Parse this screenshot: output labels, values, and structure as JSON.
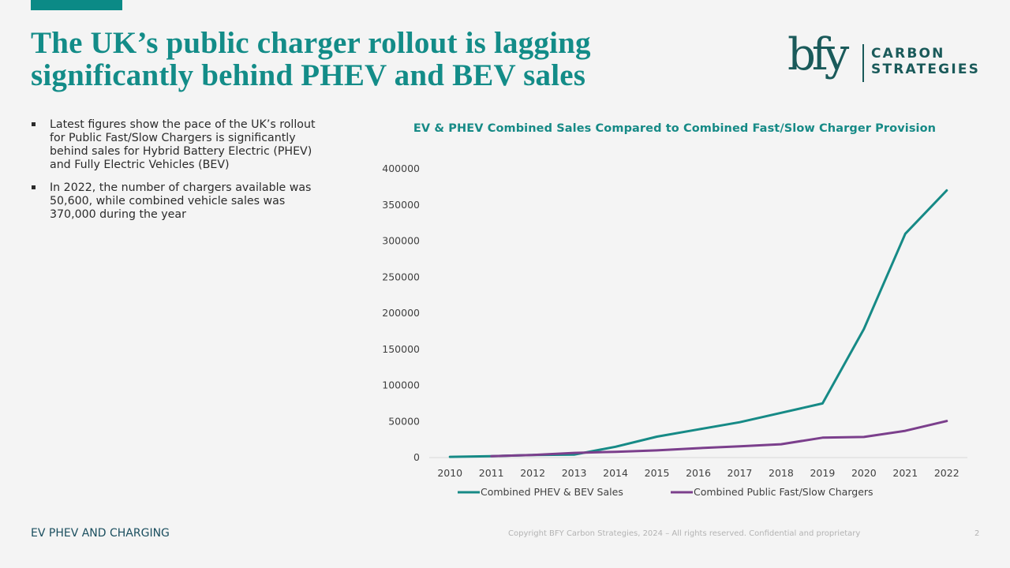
{
  "slide": {
    "title": "The UK’s public charger rollout is lagging significantly behind PHEV and BEV sales",
    "logo": {
      "mark": "bfy",
      "line1": "CARBON",
      "line2": "STRATEGIES"
    },
    "bullets": [
      "Latest figures show the pace of the UK’s rollout for Public Fast/Slow Chargers is significantly behind sales for Hybrid Battery Electric (PHEV) and Fully Electric Vehicles (BEV)",
      "In 2022, the number of chargers available was 50,600, while combined vehicle sales was 370,000 during the year"
    ],
    "footer": {
      "section": "EV PHEV AND CHARGING",
      "copyright": "Copyright BFY Carbon Strategies, 2024 – All rights reserved. Confidential and proprietary",
      "page_number": "2"
    },
    "colors": {
      "brand_teal": "#0b8a86",
      "title_teal": "#138c88",
      "logo_dark": "#1a5a5a",
      "sales_series": "#168a86",
      "chargers_series": "#7b3f8c"
    }
  },
  "chart_data": {
    "type": "line",
    "title": "EV & PHEV Combined Sales Compared to Combined Fast/Slow Charger Provision",
    "xlabel": "",
    "ylabel": "",
    "categories": [
      "2010",
      "2011",
      "2012",
      "2013",
      "2014",
      "2015",
      "2016",
      "2017",
      "2018",
      "2019",
      "2020",
      "2021",
      "2022"
    ],
    "ylim": [
      0,
      400000
    ],
    "yticks": [
      0,
      50000,
      100000,
      150000,
      200000,
      250000,
      300000,
      350000,
      400000
    ],
    "ytick_labels": [
      "0",
      "50000",
      "100000",
      "150000",
      "200000",
      "250000",
      "300000",
      "350000",
      "400000"
    ],
    "grid": false,
    "legend_position": "bottom",
    "series": [
      {
        "name": "Combined PHEV & BEV Sales",
        "color": "#168a86",
        "values": [
          1000,
          2000,
          3500,
          4000,
          15000,
          29000,
          39000,
          49000,
          62000,
          75000,
          178000,
          310000,
          370000
        ]
      },
      {
        "name": "Combined Public Fast/Slow Chargers",
        "color": "#7b3f8c",
        "values": [
          null,
          2000,
          3500,
          6500,
          8000,
          10000,
          13000,
          15500,
          18500,
          27500,
          28500,
          37000,
          50600
        ]
      }
    ]
  }
}
